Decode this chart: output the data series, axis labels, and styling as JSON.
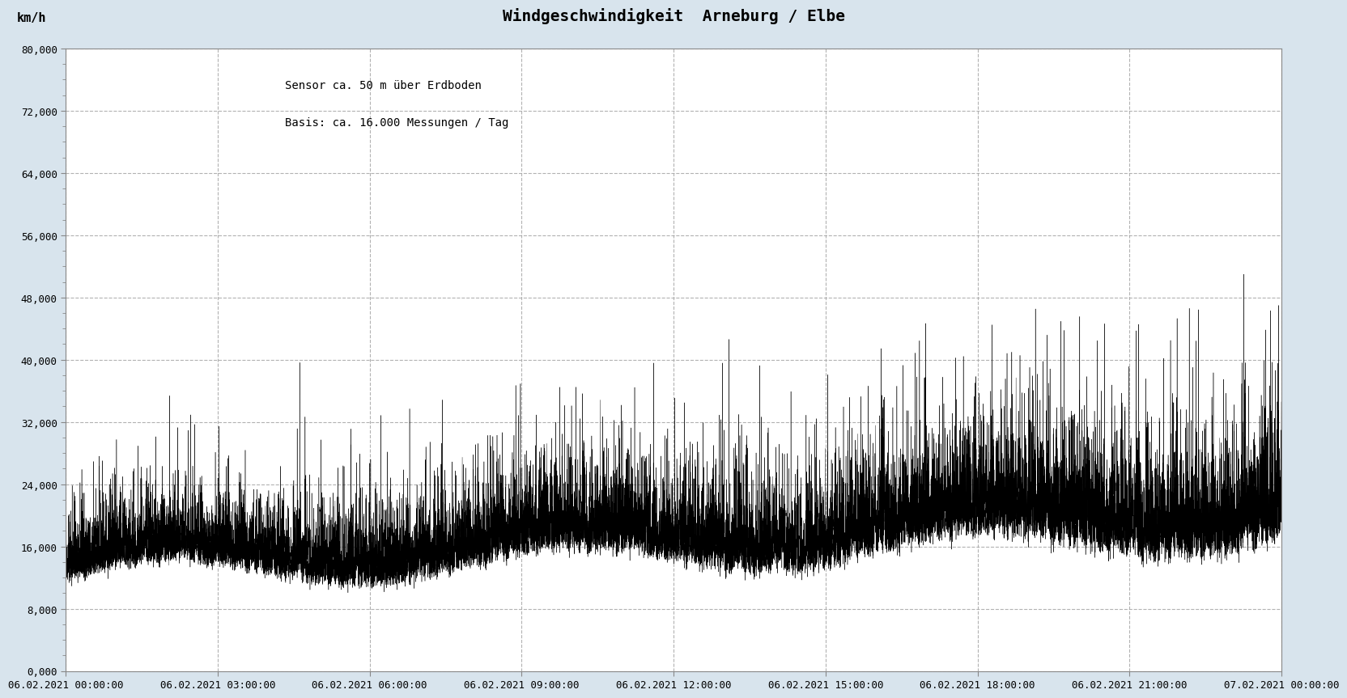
{
  "title": "Windgeschwindigkeit  Arneburg / Elbe",
  "subtitle_line1": "Sensor ca. 50 m über Erdboden",
  "subtitle_line2": "Basis: ca. 16.000 Messungen / Tag",
  "ylabel": "km/h",
  "ylim": [
    0.0,
    80.0
  ],
  "yticks": [
    0.0,
    8.0,
    16.0,
    24.0,
    32.0,
    40.0,
    48.0,
    56.0,
    64.0,
    72.0,
    80.0
  ],
  "ytick_labels": [
    "0,000",
    "8,000",
    "16,000",
    "24,000",
    "32,000",
    "40,000",
    "48,000",
    "56,000",
    "64,000",
    "72,000",
    "80,000"
  ],
  "xtick_labels": [
    "06.02.2021 00:00:00",
    "06.02.2021 03:00:00",
    "06.02.2021 06:00:00",
    "06.02.2021 09:00:00",
    "06.02.2021 12:00:00",
    "06.02.2021 15:00:00",
    "06.02.2021 18:00:00",
    "06.02.2021 21:00:00",
    "07.02.2021 00:00:00"
  ],
  "n_points": 17280,
  "outer_background": "#d8e4ed",
  "plot_background": "#ffffff",
  "line_color": "#000000",
  "grid_color": "#aaaaaa",
  "title_fontsize": 14,
  "subtitle_fontsize": 10,
  "ylabel_fontsize": 11,
  "tick_fontsize": 9
}
